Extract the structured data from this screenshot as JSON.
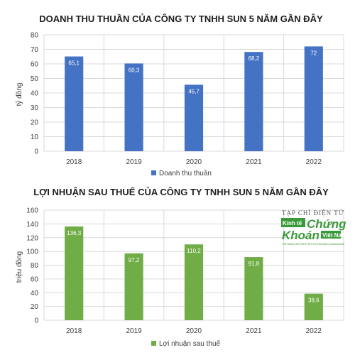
{
  "chart_data": [
    {
      "type": "bar",
      "title": "DOANH THU THUẦN CỦA CÔNG TY TNHH SUN 5 NĂM GẦN ĐÂY",
      "ylabel": "tỷ đồng",
      "xlabel": "",
      "categories": [
        "2018",
        "2019",
        "2020",
        "2021",
        "2022"
      ],
      "series": [
        {
          "name": "Doanh thu thuần",
          "values": [
            65.1,
            60.3,
            45.7,
            68.2,
            72
          ],
          "labels": [
            "65,1",
            "60,3",
            "45,7",
            "68,2",
            "72"
          ]
        }
      ],
      "ylim": [
        0,
        80
      ],
      "yticks": [
        0,
        10,
        20,
        30,
        40,
        50,
        60,
        70,
        80
      ],
      "grid": true,
      "legend": "bottom",
      "color": "#4472c4"
    },
    {
      "type": "bar",
      "title": "LỢI NHUẬN SAU THUẾ CỦA CÔNG TY TNHH SUN 5 NĂM GẦN ĐÂY",
      "ylabel": "triệu đồng",
      "xlabel": "",
      "categories": [
        "2018",
        "2019",
        "2020",
        "2021",
        "2022"
      ],
      "series": [
        {
          "name": "Lợi nhuận sau thuế",
          "values": [
            136.3,
            97.2,
            110.2,
            91.8,
            38.6
          ],
          "labels": [
            "136,3",
            "97,2",
            "110,2",
            "91,8",
            "38,6"
          ]
        }
      ],
      "ylim": [
        0,
        160
      ],
      "yticks": [
        0,
        20,
        40,
        60,
        80,
        100,
        120,
        140,
        160
      ],
      "grid": true,
      "legend": "bottom",
      "color": "#70ad47"
    }
  ],
  "watermark": {
    "line1": "TẠP CHÍ ĐIỆN TỬ",
    "line2a": "Kinh tế",
    "line2b": "Chứng",
    "line3a": "Khoán",
    "line3b": "Việt Nam",
    "line4": "VIETNAM SECURITIES ECONOMIC MAGAZINE"
  }
}
